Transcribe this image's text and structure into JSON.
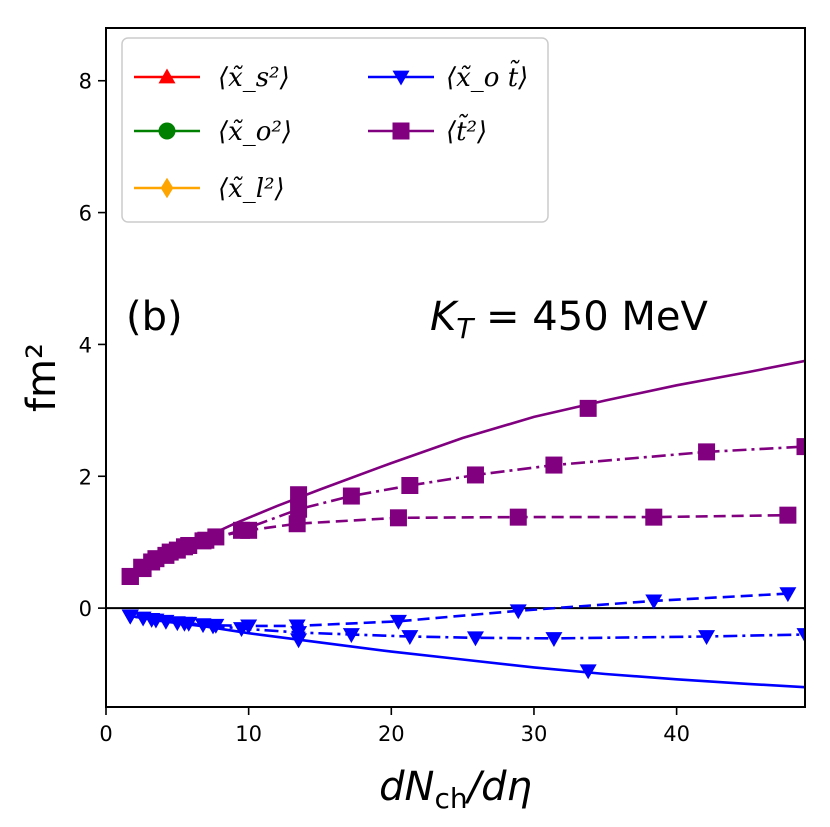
{
  "chart_data": {
    "type": "line",
    "xlabel": "dN_ch/dη",
    "ylabel": "fm²",
    "xlim": [
      0,
      49
    ],
    "ylim": [
      -1.5,
      8.8
    ],
    "xticks": [
      0,
      10,
      20,
      30,
      40
    ],
    "yticks": [
      0,
      2,
      4,
      6,
      8
    ],
    "hline": 0,
    "annotations": [
      {
        "text": "(b)"
      },
      {
        "text": "K_T = 450 MeV"
      }
    ],
    "legend": {
      "position": "top-left",
      "entries": [
        {
          "label": "⟨x̃_s²⟩",
          "color": "#ff0000",
          "marker": "triangle-up"
        },
        {
          "label": "⟨x̃_o²⟩",
          "color": "#008000",
          "marker": "circle"
        },
        {
          "label": "⟨x̃_l²⟩",
          "color": "#ffa500",
          "marker": "diamond"
        },
        {
          "label": "⟨x̃_o t̃⟩",
          "color": "#0000ff",
          "marker": "triangle-down"
        },
        {
          "label": "⟨t̃²⟩",
          "color": "#800080",
          "marker": "square"
        }
      ]
    },
    "series": [
      {
        "name": "⟨t̃²⟩ solid",
        "color": "#800080",
        "dash": "solid",
        "x": [
          1.7,
          2.5,
          3.5,
          4.5,
          5.5,
          7,
          9,
          12,
          15,
          20,
          25,
          30,
          35,
          40,
          45,
          49
        ],
        "y": [
          0.45,
          0.58,
          0.72,
          0.84,
          0.95,
          1.08,
          1.28,
          1.55,
          1.8,
          2.2,
          2.58,
          2.9,
          3.15,
          3.38,
          3.58,
          3.75
        ]
      },
      {
        "name": "⟨t̃²⟩ solid markers",
        "color": "#800080",
        "dash": "none",
        "marker": "square",
        "x": [
          1.7,
          13.5,
          33.8
        ],
        "y": [
          0.48,
          1.72,
          3.03
        ]
      },
      {
        "name": "⟨t̃²⟩ dash-dot",
        "color": "#800080",
        "dash": "dashdot",
        "marker": "square",
        "x": [
          1.7,
          2.5,
          3.5,
          4.5,
          5.5,
          7,
          9.5,
          13.5,
          17.2,
          21.3,
          25.9,
          31.4,
          42.1,
          49
        ],
        "y": [
          0.48,
          0.62,
          0.75,
          0.85,
          0.93,
          1.03,
          1.18,
          1.5,
          1.7,
          1.86,
          2.02,
          2.17,
          2.37,
          2.45
        ]
      },
      {
        "name": "⟨t̃²⟩ dashed",
        "color": "#800080",
        "dash": "dashed",
        "marker": "square",
        "x": [
          1.7,
          2.6,
          3.2,
          4.2,
          5.0,
          5.8,
          6.8,
          7.7,
          10,
          13.4,
          20.5,
          28.9,
          38.4,
          47.8
        ],
        "y": [
          0.48,
          0.6,
          0.7,
          0.8,
          0.88,
          0.95,
          1.02,
          1.08,
          1.18,
          1.28,
          1.37,
          1.38,
          1.38,
          1.41
        ]
      },
      {
        "name": "⟨x̃_o t̃⟩ solid",
        "color": "#0000ff",
        "dash": "solid",
        "x": [
          1.7,
          4,
          7,
          10,
          15,
          20,
          25,
          30,
          35,
          40,
          45,
          49
        ],
        "y": [
          -0.12,
          -0.2,
          -0.28,
          -0.38,
          -0.52,
          -0.66,
          -0.78,
          -0.9,
          -1.0,
          -1.08,
          -1.15,
          -1.2
        ]
      },
      {
        "name": "⟨x̃_o t̃⟩ solid markers",
        "color": "#0000ff",
        "dash": "none",
        "marker": "triangle-down",
        "x": [
          1.7,
          13.5,
          33.8
        ],
        "y": [
          -0.12,
          -0.48,
          -0.95
        ]
      },
      {
        "name": "⟨x̃_o t̃⟩ dash-dot",
        "color": "#0000ff",
        "dash": "dashdot",
        "marker": "triangle-down",
        "x": [
          1.7,
          3.5,
          5.5,
          7.5,
          9.5,
          13.5,
          17.2,
          21.3,
          25.9,
          31.4,
          42.1,
          49
        ],
        "y": [
          -0.12,
          -0.18,
          -0.23,
          -0.27,
          -0.31,
          -0.37,
          -0.4,
          -0.43,
          -0.45,
          -0.46,
          -0.43,
          -0.4
        ]
      },
      {
        "name": "⟨x̃_o t̃⟩ dashed",
        "color": "#0000ff",
        "dash": "dashed",
        "marker": "triangle-down",
        "x": [
          1.7,
          2.6,
          3.2,
          4.2,
          5.0,
          5.8,
          6.8,
          7.7,
          10,
          13.4,
          20.5,
          28.9,
          38.4,
          47.8
        ],
        "y": [
          -0.12,
          -0.15,
          -0.17,
          -0.2,
          -0.22,
          -0.23,
          -0.25,
          -0.26,
          -0.27,
          -0.27,
          -0.2,
          -0.04,
          0.11,
          0.22
        ]
      }
    ]
  }
}
